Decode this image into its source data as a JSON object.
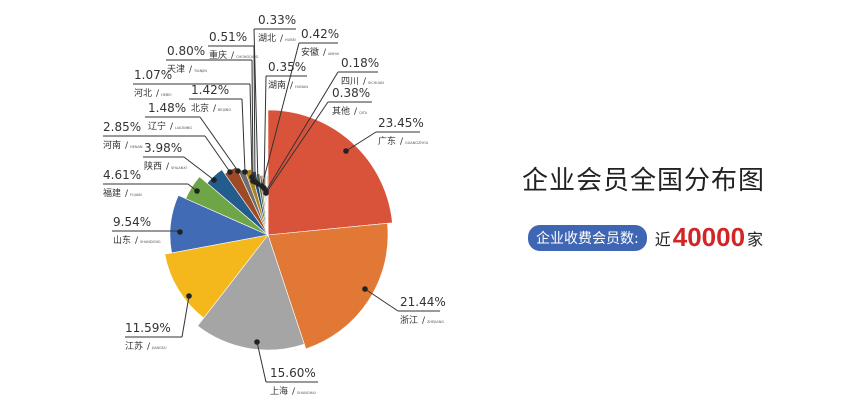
{
  "chart_data": {
    "type": "pie",
    "title": "企业会员全国分布图",
    "start": "top",
    "direction": "clockwise",
    "slices": [
      {
        "name": "广东",
        "pinyin": "GUANGZHOU",
        "value": 23.45,
        "label": "23.45%",
        "color": "#d9533a"
      },
      {
        "name": "浙江",
        "pinyin": "ZHEJIANG",
        "value": 21.44,
        "label": "21.44%",
        "color": "#e27835"
      },
      {
        "name": "上海",
        "pinyin": "SHANGHAI",
        "value": 15.6,
        "label": "15.60%",
        "color": "#a5a5a5"
      },
      {
        "name": "江苏",
        "pinyin": "JIANGSU",
        "value": 11.59,
        "label": "11.59%",
        "color": "#f4b81c"
      },
      {
        "name": "山东",
        "pinyin": "SHANDONG",
        "value": 9.54,
        "label": "9.54%",
        "color": "#416cb5"
      },
      {
        "name": "福建",
        "pinyin": "FUJIAN",
        "value": 4.61,
        "label": "4.61%",
        "color": "#6ea647"
      },
      {
        "name": "陕西",
        "pinyin": "SHAANXI",
        "value": 3.98,
        "label": "3.98%",
        "color": "#245c8e"
      },
      {
        "name": "河南",
        "pinyin": "HENAN",
        "value": 2.85,
        "label": "2.85%",
        "color": "#9e4a26"
      },
      {
        "name": "辽宁",
        "pinyin": "LIAONING",
        "value": 1.48,
        "label": "1.48%",
        "color": "#6e6e6e"
      },
      {
        "name": "北京",
        "pinyin": "BEIJING",
        "value": 1.42,
        "label": "1.42%",
        "color": "#a9841f"
      },
      {
        "name": "河北",
        "pinyin": "HEBEI",
        "value": 1.07,
        "label": "1.07%",
        "color": "#2b4b7f"
      },
      {
        "name": "天津",
        "pinyin": "TIANJIN",
        "value": 0.8,
        "label": "0.80%",
        "color": "#4e7a34"
      },
      {
        "name": "重庆",
        "pinyin": "CHONGQING",
        "value": 0.51,
        "label": "0.51%",
        "color": "#8a4a2a"
      },
      {
        "name": "湖北",
        "pinyin": "HUBEI",
        "value": 0.33,
        "label": "0.33%",
        "color": "#7a7a7a"
      },
      {
        "name": "安徽",
        "pinyin": "ANHUI",
        "value": 0.42,
        "label": "0.42%",
        "color": "#c79a2a"
      },
      {
        "name": "湖南",
        "pinyin": "HUNAN",
        "value": 0.35,
        "label": "0.35%",
        "color": "#7f9fd4"
      },
      {
        "name": "四川",
        "pinyin": "SICHUAN",
        "value": 0.18,
        "label": "0.18%",
        "color": "#9bc27a"
      },
      {
        "name": "其他",
        "pinyin": "QITA",
        "value": 0.38,
        "label": "0.38%",
        "color": "#f0c080"
      }
    ]
  },
  "header": {
    "title": "企业会员全国分布图",
    "badge": "企业收费会员数:",
    "prefix": "近",
    "count": "40000",
    "unit": "家"
  }
}
